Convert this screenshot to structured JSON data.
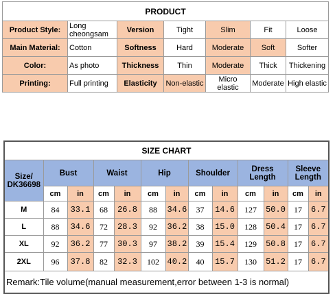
{
  "product": {
    "title": "PRODUCT",
    "rows": [
      [
        "Product Style:",
        "Long cheongsam",
        "Version",
        "Tight",
        "Slim",
        "Fit",
        "Loose"
      ],
      [
        "Main Material:",
        "Cotton",
        "Softness",
        "Hard",
        "Moderate",
        "Soft",
        "Softer"
      ],
      [
        "Color:",
        "As photo",
        "Thickness",
        "Thin",
        "Moderate",
        "Thick",
        "Thickening"
      ],
      [
        "Printing:",
        "Full printing",
        "Elasticity",
        "Non-elastic",
        "Micro elastic",
        "Moderate",
        "High elastic"
      ]
    ]
  },
  "size_chart": {
    "title": "SIZE CHART",
    "headers": [
      "Size/ DK36698",
      "Bust",
      "Waist",
      "Hip",
      "Shoulder",
      "Dress Length",
      "Sleeve Length"
    ],
    "units": [
      "cm",
      "in",
      "cm",
      "in",
      "cm",
      "in",
      "cm",
      "in",
      "cm",
      "in",
      "cm",
      "in"
    ],
    "rows": [
      [
        "M",
        "84",
        "33.1",
        "68",
        "26.8",
        "88",
        "34.6",
        "37",
        "14.6",
        "127",
        "50.0",
        "17",
        "6.7"
      ],
      [
        "L",
        "88",
        "34.6",
        "72",
        "28.3",
        "92",
        "36.2",
        "38",
        "15.0",
        "128",
        "50.4",
        "17",
        "6.7"
      ],
      [
        "XL",
        "92",
        "36.2",
        "77",
        "30.3",
        "97",
        "38.2",
        "39",
        "15.4",
        "129",
        "50.8",
        "17",
        "6.7"
      ],
      [
        "2XL",
        "96",
        "37.8",
        "82",
        "32.3",
        "102",
        "40.2",
        "40",
        "15.7",
        "130",
        "51.2",
        "17",
        "6.7"
      ]
    ],
    "remark": "Remark:Tile volume(manual measurement,error between 1-3 is normal)"
  }
}
